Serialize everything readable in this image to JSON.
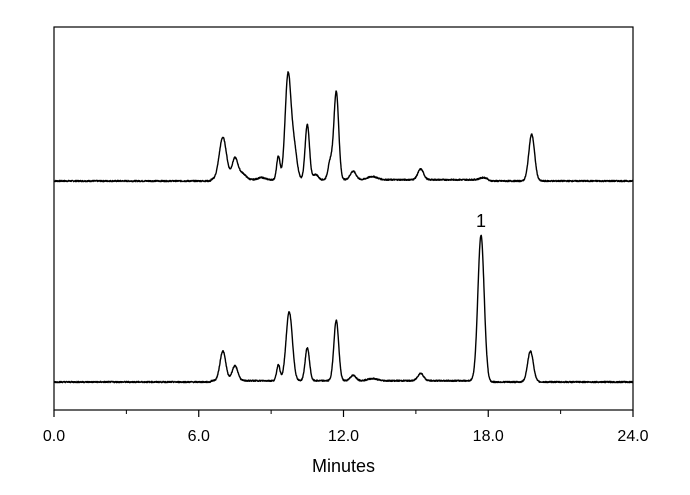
{
  "chart_data": {
    "type": "line",
    "title": "",
    "xlabel": "Minutes",
    "ylabel": "",
    "xlim": [
      0,
      24
    ],
    "x_ticks": [
      "0.0",
      "6.0",
      "12.0",
      "18.0",
      "24.0"
    ],
    "x_minor_ticks": [
      3,
      9,
      15,
      21
    ],
    "y_axis_labels_shown": false,
    "grid": false,
    "legend": "none",
    "colors": {
      "trace": "#000000",
      "axes": "#000000",
      "background": "#ffffff"
    },
    "series": [
      {
        "peaks": [
          {
            "rt": 7.0,
            "height": 0.4,
            "width": 0.15
          },
          {
            "rt": 7.5,
            "height": 0.2,
            "width": 0.12
          },
          {
            "rt": 7.8,
            "height": 0.06,
            "width": 0.15
          },
          {
            "rt": 8.6,
            "height": 0.02,
            "width": 0.15
          },
          {
            "rt": 9.3,
            "height": 0.22,
            "width": 0.07
          },
          {
            "rt": 9.7,
            "height": 0.98,
            "width": 0.12
          },
          {
            "rt": 9.95,
            "height": 0.3,
            "width": 0.12
          },
          {
            "rt": 10.5,
            "height": 0.52,
            "width": 0.09
          },
          {
            "rt": 10.85,
            "height": 0.05,
            "width": 0.1
          },
          {
            "rt": 11.45,
            "height": 0.17,
            "width": 0.09
          },
          {
            "rt": 11.7,
            "height": 0.83,
            "width": 0.1
          },
          {
            "rt": 12.4,
            "height": 0.08,
            "width": 0.12
          },
          {
            "rt": 13.2,
            "height": 0.03,
            "width": 0.2
          },
          {
            "rt": 15.2,
            "height": 0.1,
            "width": 0.12
          },
          {
            "rt": 17.8,
            "height": 0.02,
            "width": 0.15
          },
          {
            "rt": 19.8,
            "height": 0.44,
            "width": 0.12
          }
        ]
      },
      {
        "peaks": [
          {
            "rt": 7.0,
            "height": 0.28,
            "width": 0.12
          },
          {
            "rt": 7.5,
            "height": 0.14,
            "width": 0.12
          },
          {
            "rt": 9.3,
            "height": 0.15,
            "width": 0.07
          },
          {
            "rt": 9.75,
            "height": 0.65,
            "width": 0.13
          },
          {
            "rt": 10.5,
            "height": 0.31,
            "width": 0.09
          },
          {
            "rt": 11.7,
            "height": 0.57,
            "width": 0.1
          },
          {
            "rt": 12.4,
            "height": 0.05,
            "width": 0.12
          },
          {
            "rt": 13.2,
            "height": 0.02,
            "width": 0.2
          },
          {
            "rt": 15.2,
            "height": 0.07,
            "width": 0.12
          },
          {
            "rt": 17.7,
            "height": 1.37,
            "width": 0.13
          },
          {
            "rt": 19.75,
            "height": 0.29,
            "width": 0.12
          }
        ]
      }
    ],
    "annotations": [
      {
        "text": "1",
        "x": 17.7,
        "series": 1
      }
    ]
  }
}
